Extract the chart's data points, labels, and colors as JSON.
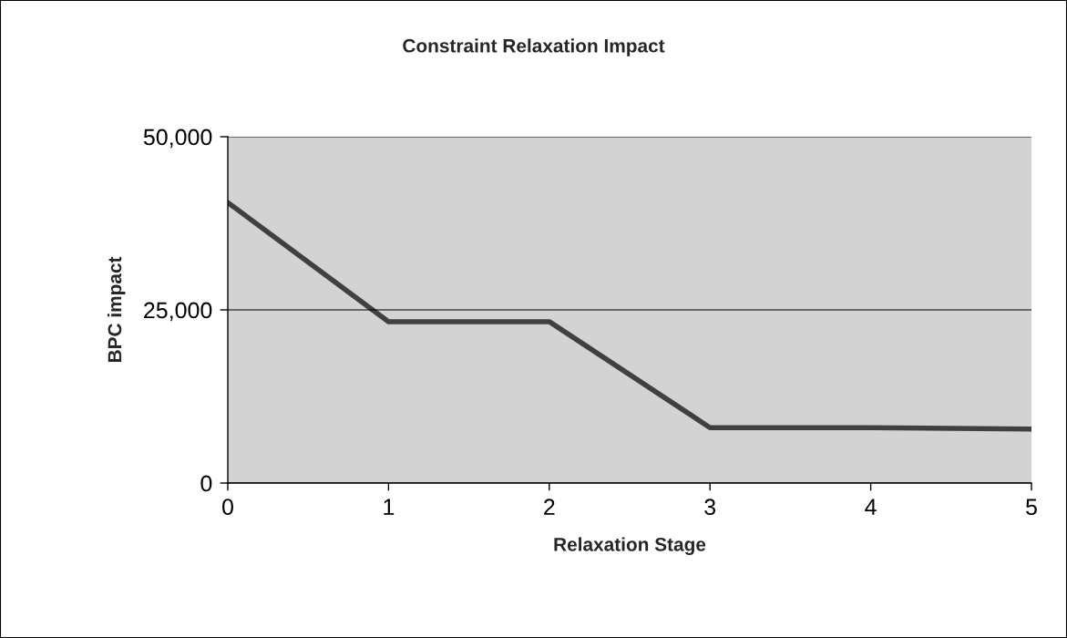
{
  "chart_data": {
    "type": "line",
    "title": "Constraint Relaxation Impact",
    "xlabel": "Relaxation Stage",
    "ylabel": "BPC impact",
    "x": [
      0,
      1,
      2,
      3,
      4,
      5
    ],
    "series": [
      {
        "color": "#404040",
        "values": [
          40500,
          23300,
          23300,
          8000,
          8000,
          7800
        ]
      }
    ],
    "xlim": [
      0,
      5
    ],
    "xticks": [
      0,
      1,
      2,
      3,
      4,
      5
    ],
    "ylim": [
      0,
      50000
    ],
    "yticks": [
      0,
      {
        "value": 25000,
        "label": "25,000"
      },
      {
        "value": 50000,
        "label": "50,000"
      }
    ],
    "grid": "y",
    "marker": "none",
    "line_style": "solid"
  }
}
